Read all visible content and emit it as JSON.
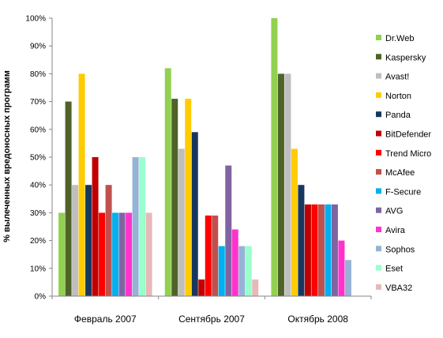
{
  "chart_data": {
    "type": "bar",
    "ylabel": "% вылеченных вредоносных программ",
    "ylim": [
      0,
      100
    ],
    "yticks": [
      "0%",
      "10%",
      "20%",
      "30%",
      "40%",
      "50%",
      "60%",
      "70%",
      "80%",
      "90%",
      "100%"
    ],
    "categories": [
      "Февраль 2007",
      "Сентябрь 2007",
      "Октябрь 2008"
    ],
    "grid": false,
    "legend_position": "right",
    "series": [
      {
        "name": "Dr.Web",
        "color": "#92d050",
        "values": [
          30,
          82,
          100
        ]
      },
      {
        "name": "Kaspersky",
        "color": "#4f6228",
        "values": [
          70,
          71,
          80
        ]
      },
      {
        "name": "Avast!",
        "color": "#bfbfbf",
        "values": [
          40,
          53,
          80
        ]
      },
      {
        "name": "Norton",
        "color": "#ffcc00",
        "values": [
          80,
          71,
          53
        ]
      },
      {
        "name": "Panda",
        "color": "#17375e",
        "values": [
          40,
          59,
          40
        ]
      },
      {
        "name": "BitDefender",
        "color": "#c00000",
        "values": [
          50,
          6,
          33
        ]
      },
      {
        "name": "Trend Micro",
        "color": "#ff0000",
        "values": [
          30,
          29,
          33
        ]
      },
      {
        "name": "McAfee",
        "color": "#c0504d",
        "values": [
          40,
          29,
          33
        ]
      },
      {
        "name": "F-Secure",
        "color": "#00b0f0",
        "values": [
          30,
          18,
          33
        ]
      },
      {
        "name": "AVG",
        "color": "#8064a2",
        "values": [
          30,
          47,
          33
        ]
      },
      {
        "name": "Avira",
        "color": "#ff33cc",
        "values": [
          30,
          24,
          20
        ]
      },
      {
        "name": "Sophos",
        "color": "#95b3d7",
        "values": [
          50,
          18,
          13
        ]
      },
      {
        "name": "Eset",
        "color": "#99ffcc",
        "values": [
          50,
          18,
          0
        ]
      },
      {
        "name": "VBA32",
        "color": "#e6b9b8",
        "values": [
          30,
          6,
          0
        ]
      }
    ]
  }
}
